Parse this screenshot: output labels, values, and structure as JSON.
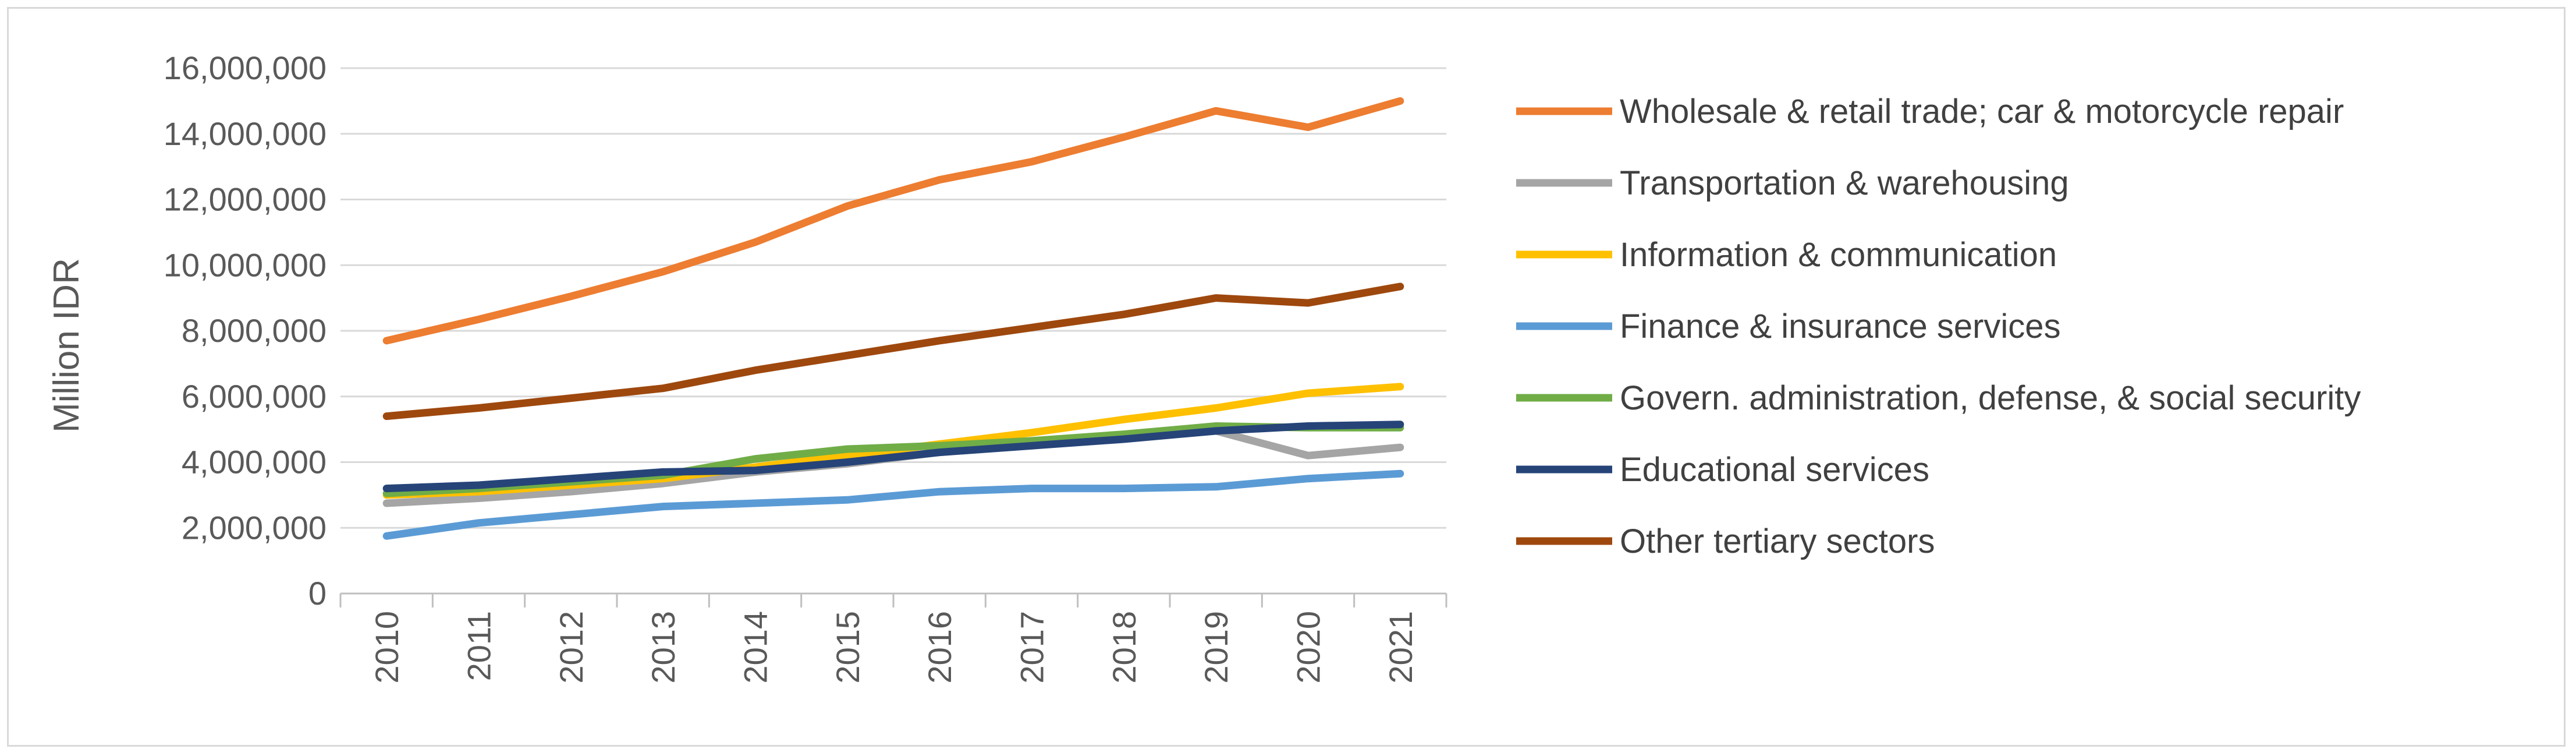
{
  "chart_data": {
    "type": "line",
    "title": "",
    "xlabel": "",
    "ylabel": "Million IDR",
    "ylim": [
      0,
      16000000
    ],
    "yticks": [
      0,
      2000000,
      4000000,
      6000000,
      8000000,
      10000000,
      12000000,
      14000000,
      16000000
    ],
    "ytick_labels": [
      "0",
      "2,000,000",
      "4,000,000",
      "6,000,000",
      "8,000,000",
      "10,000,000",
      "12,000,000",
      "14,000,000",
      "16,000,000"
    ],
    "categories": [
      "2010",
      "2011",
      "2012",
      "2013",
      "2014",
      "2015",
      "2016",
      "2017",
      "2018",
      "2019",
      "2020",
      "2021"
    ],
    "grid": "horizontal",
    "legend_position": "right",
    "series": [
      {
        "name": "Wholesale & retail trade; car & motorcycle repair",
        "color": "#ED7D31",
        "values": [
          7700000,
          8350000,
          9050000,
          9800000,
          10700000,
          11800000,
          12600000,
          13150000,
          13900000,
          14700000,
          14200000,
          15000000
        ]
      },
      {
        "name": "Transportation & warehousing",
        "color": "#A5A5A5",
        "values": [
          2750000,
          2900000,
          3100000,
          3350000,
          3700000,
          3950000,
          4300000,
          4500000,
          4750000,
          4950000,
          4200000,
          4450000
        ]
      },
      {
        "name": "Information & communication",
        "color": "#FFC000",
        "values": [
          3000000,
          3100000,
          3300000,
          3500000,
          3850000,
          4200000,
          4550000,
          4900000,
          5300000,
          5650000,
          6100000,
          6300000
        ]
      },
      {
        "name": "Finance & insurance services",
        "color": "#5B9BD5",
        "values": [
          1750000,
          2150000,
          2400000,
          2650000,
          2750000,
          2850000,
          3100000,
          3200000,
          3200000,
          3250000,
          3500000,
          3650000
        ]
      },
      {
        "name": "Govern. administration, defense, & social security",
        "color": "#70AD47",
        "values": [
          3050000,
          3200000,
          3400000,
          3600000,
          4100000,
          4400000,
          4500000,
          4650000,
          4850000,
          5100000,
          5050000,
          5050000
        ]
      },
      {
        "name": "Educational services",
        "color": "#264478",
        "values": [
          3200000,
          3300000,
          3500000,
          3700000,
          3750000,
          4000000,
          4300000,
          4500000,
          4700000,
          4950000,
          5100000,
          5150000
        ]
      },
      {
        "name": "Other tertiary sectors",
        "color": "#9E480E",
        "values": [
          5400000,
          5650000,
          5950000,
          6250000,
          6800000,
          7250000,
          7700000,
          8100000,
          8500000,
          9000000,
          8850000,
          9350000
        ]
      }
    ]
  }
}
